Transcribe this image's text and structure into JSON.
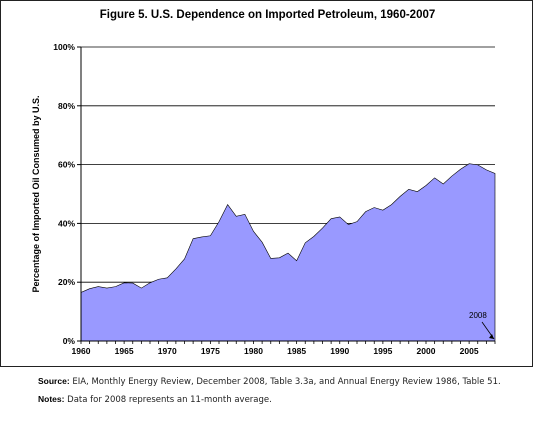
{
  "chart_data": {
    "type": "area",
    "title": "Figure 5. U.S. Dependence on Imported Petroleum, 1960-2007",
    "ylabel": "Percentage of Imported Oil Consumed by U.S.",
    "xlabel": "",
    "x": [
      1960,
      1961,
      1962,
      1963,
      1964,
      1965,
      1966,
      1967,
      1968,
      1969,
      1970,
      1971,
      1972,
      1973,
      1974,
      1975,
      1976,
      1977,
      1978,
      1979,
      1980,
      1981,
      1982,
      1983,
      1984,
      1985,
      1986,
      1987,
      1988,
      1989,
      1990,
      1991,
      1992,
      1993,
      1994,
      1995,
      1996,
      1997,
      1998,
      1999,
      2000,
      2001,
      2002,
      2003,
      2004,
      2005,
      2006,
      2007,
      2008
    ],
    "series": [
      {
        "values": [
          16.5,
          17.8,
          18.5,
          18,
          18.5,
          19.8,
          19.7,
          18.0,
          19.8,
          21.0,
          21.5,
          24.5,
          27.9,
          34.8,
          35.4,
          35.8,
          40.6,
          46.4,
          42.4,
          43.1,
          37.3,
          33.6,
          28.1,
          28.3,
          29.9,
          27.3,
          33.4,
          35.6,
          38.4,
          41.6,
          42.2,
          39.6,
          40.6,
          44.0,
          45.4,
          44.5,
          46.4,
          49.2,
          51.6,
          50.8,
          52.9,
          55.5,
          53.4,
          56.1,
          58.4,
          60.3,
          59.9,
          58.2,
          57.0
        ]
      }
    ],
    "ylim": [
      0,
      100
    ],
    "xlim": [
      1960,
      2008
    ],
    "yticks": [
      "0%",
      "20%",
      "40%",
      "60%",
      "80%",
      "100%"
    ],
    "xticks": [
      1960,
      1965,
      1970,
      1975,
      1980,
      1985,
      1990,
      1995,
      2000,
      2005
    ],
    "grid": true,
    "fill_color": "#9999ff",
    "annotation": "2008"
  },
  "notes": {
    "source_label": "Source:",
    "source_text": " EIA, Monthly Energy Review, December 2008, Table 3.3a, and Annual Energy Review 1986, Table 51.",
    "notes_label": "Notes:",
    "notes_text": " Data for 2008 represents an 11-month average."
  }
}
